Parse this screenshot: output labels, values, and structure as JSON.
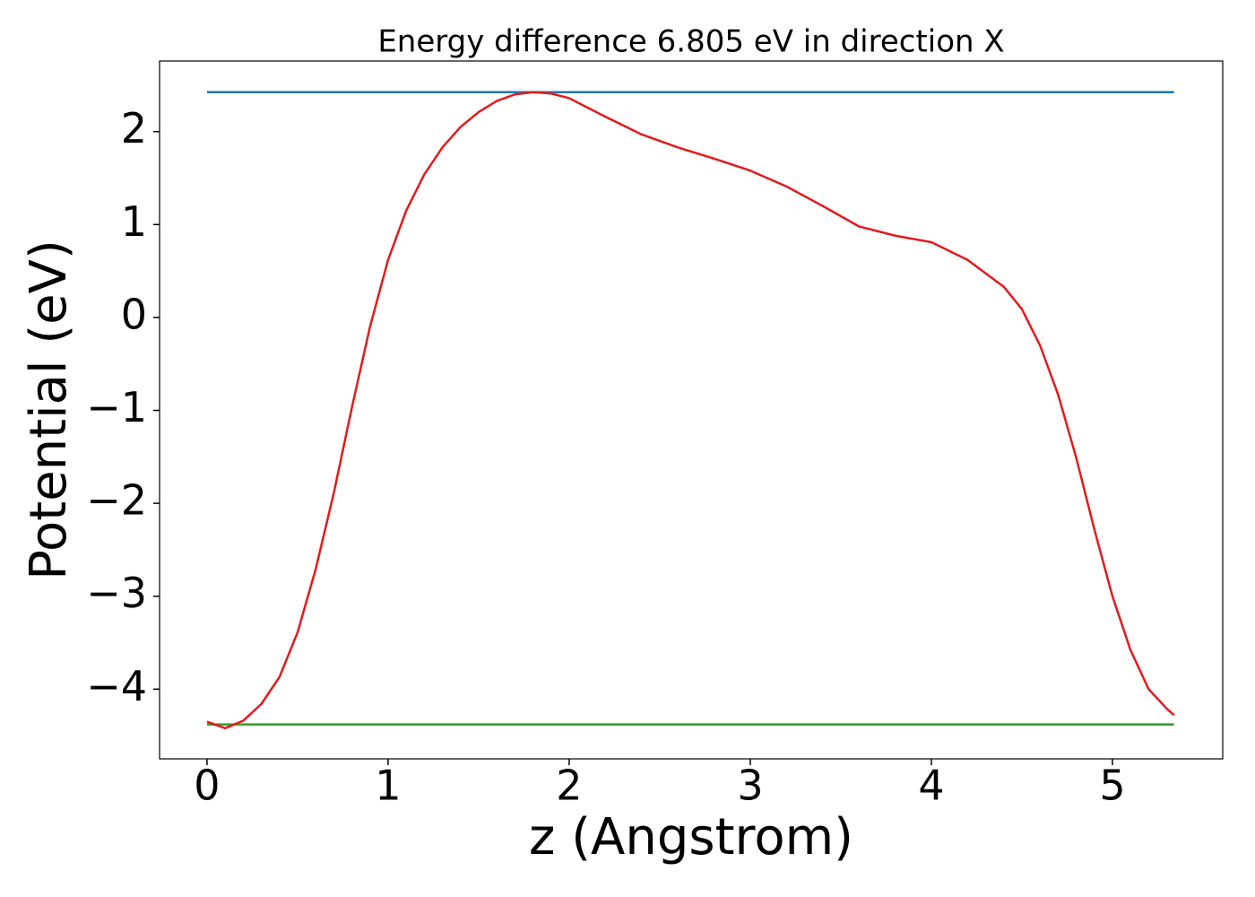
{
  "chart_data": {
    "type": "line",
    "title": "Energy difference 6.805 eV in direction X",
    "x_label": "z (Angstrom)",
    "y_label": "Potential (eV)",
    "xlim": [
      -0.262,
      5.609
    ],
    "ylim": [
      -4.75,
      2.76
    ],
    "xticks": [
      0,
      1,
      2,
      3,
      4,
      5
    ],
    "yticks": [
      2,
      1,
      0,
      {
        "value": -1,
        "label": "−1"
      },
      {
        "value": -2,
        "label": "−2"
      },
      {
        "value": -3,
        "label": "−3"
      },
      {
        "value": -4,
        "label": "−4"
      }
    ],
    "series": [
      {
        "color": "#1f77b4",
        "x": [
          0,
          5.34
        ],
        "values": [
          2.425,
          2.425
        ]
      },
      {
        "color": "#2ca02c",
        "x": [
          0,
          5.34
        ],
        "values": [
          -4.38,
          -4.38
        ]
      },
      {
        "color": "#e31a1c",
        "x": [
          0,
          0.1,
          0.2,
          0.3,
          0.4,
          0.5,
          0.6,
          0.7,
          0.8,
          0.9,
          1.0,
          1.1,
          1.2,
          1.3,
          1.4,
          1.5,
          1.6,
          1.7,
          1.8,
          1.9,
          2.0,
          2.2,
          2.4,
          2.6,
          2.8,
          3.0,
          3.2,
          3.4,
          3.6,
          3.8,
          4.0,
          4.2,
          4.4,
          4.5,
          4.6,
          4.7,
          4.8,
          4.9,
          5.0,
          5.1,
          5.2,
          5.3,
          5.34
        ],
        "values": [
          -4.35,
          -4.42,
          -4.34,
          -4.16,
          -3.87,
          -3.39,
          -2.71,
          -1.89,
          -0.97,
          -0.1,
          0.62,
          1.15,
          1.54,
          1.83,
          2.05,
          2.21,
          2.33,
          2.4,
          2.425,
          2.41,
          2.36,
          2.16,
          1.97,
          1.83,
          1.71,
          1.58,
          1.41,
          1.2,
          0.98,
          0.88,
          0.81,
          0.62,
          0.33,
          0.09,
          -0.3,
          -0.83,
          -1.51,
          -2.28,
          -3.0,
          -3.58,
          -4.0,
          -4.21,
          -4.28
        ]
      }
    ]
  }
}
